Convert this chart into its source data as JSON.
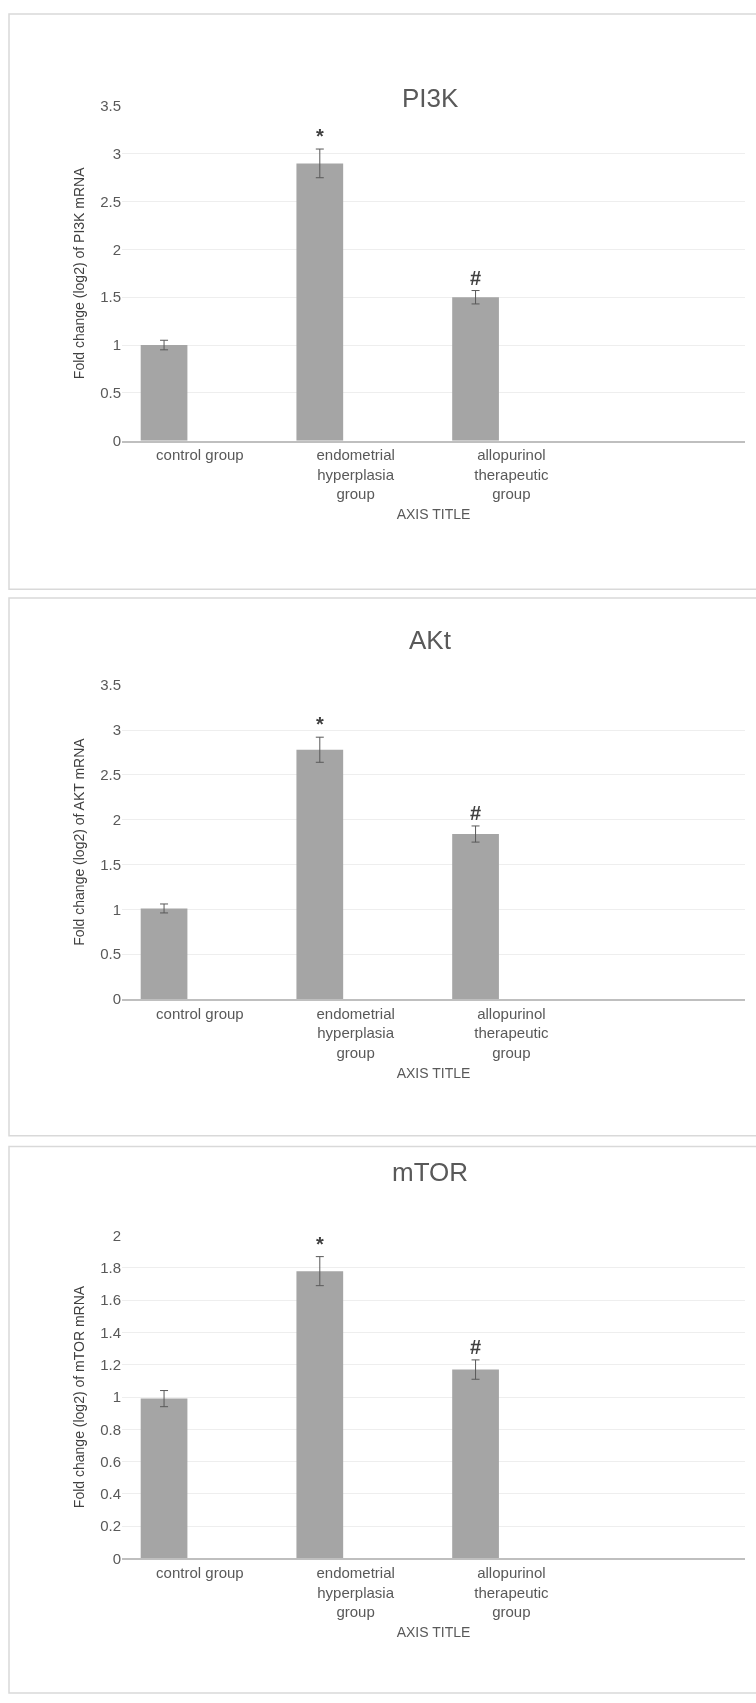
{
  "chart_data": [
    {
      "type": "bar",
      "title": "PI3K",
      "xlabel": "AXIS TITLE",
      "ylabel": "Fold change (log2) of PI3K mRNA",
      "categories": [
        "control group",
        "endometrial hyperplasia group",
        "allopurinol therapeutic group",
        null
      ],
      "values": [
        1.0,
        2.9,
        1.5,
        null
      ],
      "errors": [
        0.05,
        0.15,
        0.07,
        null
      ],
      "color": "#a5a5a5",
      "ylim": [
        0,
        3.5
      ],
      "yticks": [
        0,
        0.5,
        1,
        1.5,
        2,
        2.5,
        3,
        3.5
      ],
      "grid": "y",
      "annotations": [
        "*",
        "#"
      ]
    },
    {
      "type": "bar",
      "title": "AKt",
      "xlabel": "AXIS TITLE",
      "ylabel": "Fold change (log2) of AKT mRNA",
      "categories": [
        "control group",
        "endometrial hyperplasia group",
        "allopurinol therapeutic group",
        null
      ],
      "values": [
        1.01,
        2.78,
        1.84,
        null
      ],
      "errors": [
        0.05,
        0.14,
        0.09,
        null
      ],
      "color": "#a5a5a5",
      "ylim": [
        0,
        3.5
      ],
      "yticks": [
        0,
        0.5,
        1,
        1.5,
        2,
        2.5,
        3,
        3.5
      ],
      "grid": "y",
      "annotations": [
        "*",
        "#"
      ]
    },
    {
      "type": "bar",
      "title": "mTOR",
      "xlabel": "AXIS TITLE",
      "ylabel": "Fold change (log2) of mTOR mRNA",
      "categories": [
        "control group",
        "endometrial hyperplasia group",
        "allopurinol therapeutic group",
        null
      ],
      "values": [
        0.99,
        1.78,
        1.17,
        null
      ],
      "errors": [
        0.05,
        0.09,
        0.06,
        null
      ],
      "color": "#a5a5a5",
      "ylim": [
        0,
        2
      ],
      "yticks": [
        0,
        0.2,
        0.4,
        0.6,
        0.8,
        1,
        1.2,
        1.4,
        1.6,
        1.8,
        2
      ],
      "grid": "y",
      "annotations": [
        "*",
        "#"
      ]
    }
  ]
}
